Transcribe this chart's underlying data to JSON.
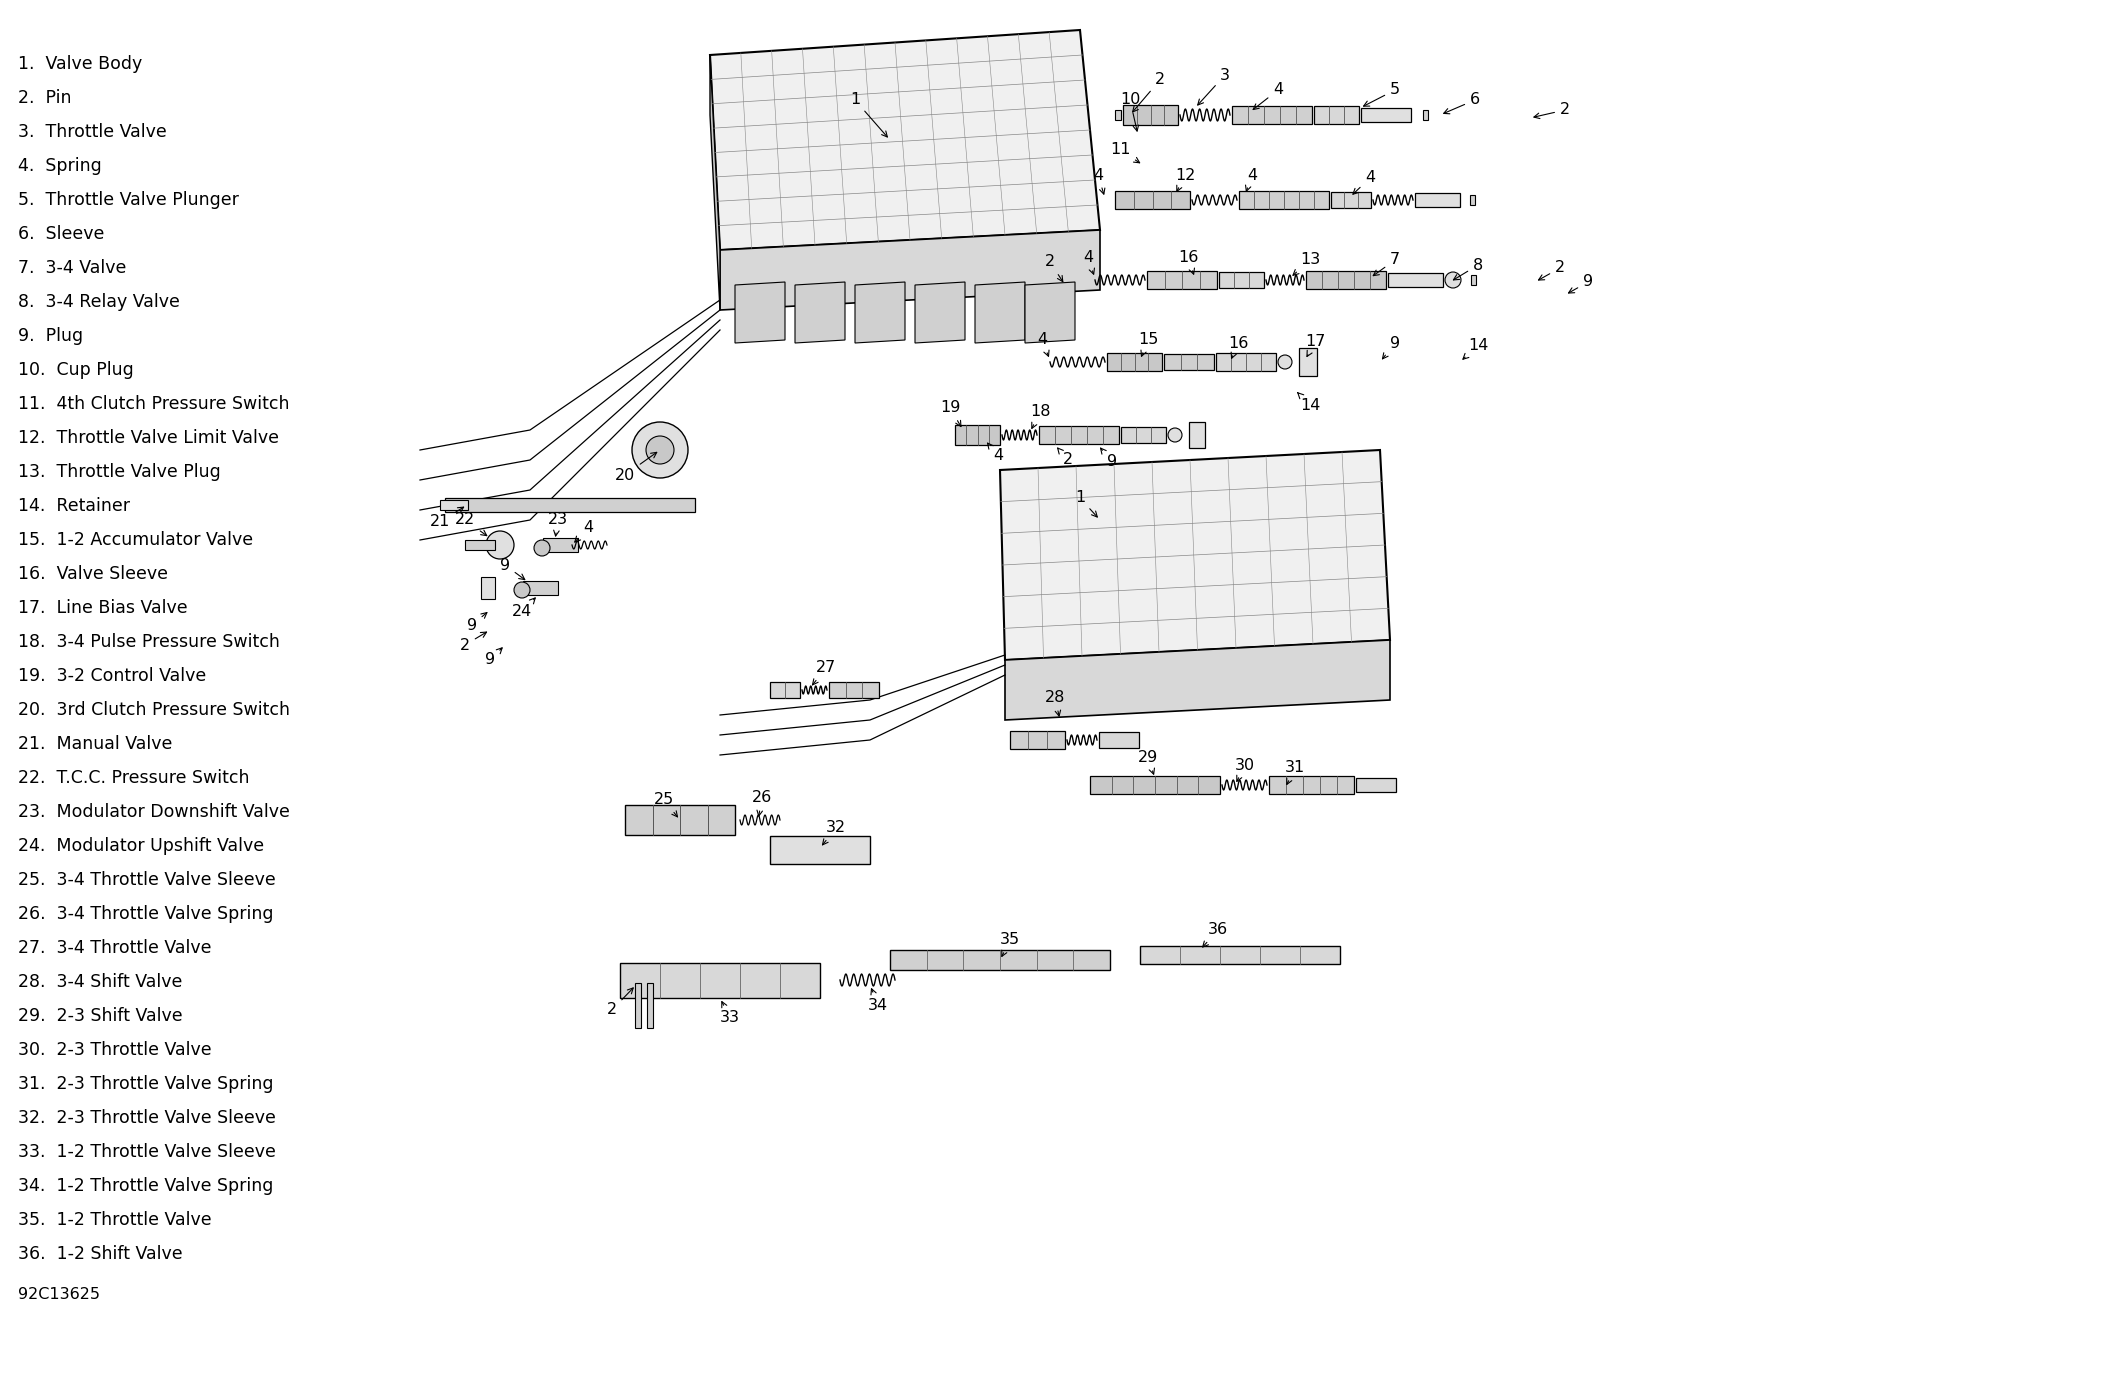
{
  "background_color": "#ffffff",
  "text_color": "#000000",
  "parts_list": [
    "1.  Valve Body",
    "2.  Pin",
    "3.  Throttle Valve",
    "4.  Spring",
    "5.  Throttle Valve Plunger",
    "6.  Sleeve",
    "7.  3-4 Valve",
    "8.  3-4 Relay Valve",
    "9.  Plug",
    "10.  Cup Plug",
    "11.  4th Clutch Pressure Switch",
    "12.  Throttle Valve Limit Valve",
    "13.  Throttle Valve Plug",
    "14.  Retainer",
    "15.  1-2 Accumulator Valve",
    "16.  Valve Sleeve",
    "17.  Line Bias Valve",
    "18.  3-4 Pulse Pressure Switch",
    "19.  3-2 Control Valve",
    "20.  3rd Clutch Pressure Switch",
    "21.  Manual Valve",
    "22.  T.C.C. Pressure Switch",
    "23.  Modulator Downshift Valve",
    "24.  Modulator Upshift Valve",
    "25.  3-4 Throttle Valve Sleeve",
    "26.  3-4 Throttle Valve Spring",
    "27.  3-4 Throttle Valve",
    "28.  3-4 Shift Valve",
    "29.  2-3 Shift Valve",
    "30.  2-3 Throttle Valve",
    "31.  2-3 Throttle Valve Spring",
    "32.  2-3 Throttle Valve Sleeve",
    "33.  1-2 Throttle Valve Sleeve",
    "34.  1-2 Throttle Valve Spring",
    "35.  1-2 Throttle Valve",
    "36.  1-2 Shift Valve"
  ],
  "figure_code": "92C13625",
  "list_fontsize": 12.5,
  "label_fontsize": 11.5,
  "figsize": [
    21.24,
    13.95
  ],
  "dpi": 100
}
